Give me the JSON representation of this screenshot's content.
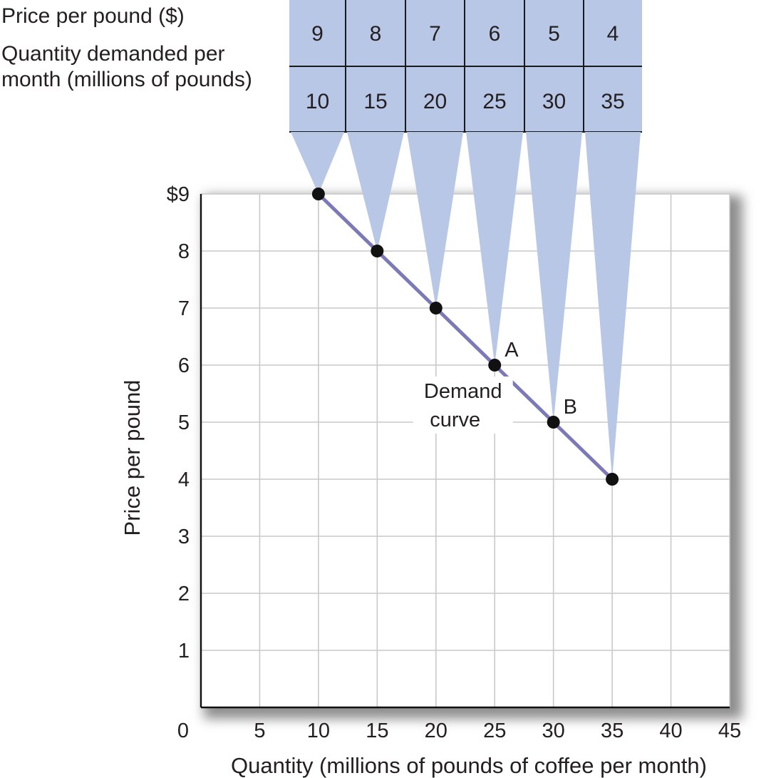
{
  "table": {
    "price_label": "Price per pound ($)",
    "quantity_label_line1": "Quantity demanded per",
    "quantity_label_line2": "month (millions of pounds)",
    "prices": [
      "9",
      "8",
      "7",
      "6",
      "5",
      "4"
    ],
    "quantities": [
      "10",
      "15",
      "20",
      "25",
      "30",
      "35"
    ]
  },
  "chart_data": {
    "type": "line",
    "series": [
      {
        "name": "Demand curve",
        "x": [
          10,
          15,
          20,
          25,
          30,
          35
        ],
        "y": [
          9,
          8,
          7,
          6,
          5,
          4
        ]
      }
    ],
    "xlabel": "Quantity (millions of pounds of coffee per month)",
    "ylabel": "Price per pound",
    "xlim": [
      0,
      45
    ],
    "ylim": [
      0,
      9
    ],
    "x_ticks": [
      "0",
      "5",
      "10",
      "15",
      "20",
      "25",
      "30",
      "35",
      "40",
      "45"
    ],
    "y_ticks": [
      "",
      "1",
      "2",
      "3",
      "4",
      "5",
      "6",
      "7",
      "8",
      "$9"
    ],
    "grid": true,
    "annotations": [
      {
        "text": "A",
        "x": 25,
        "y": 6
      },
      {
        "text": "B",
        "x": 30,
        "y": 5
      }
    ],
    "curve_label_line1": "Demand",
    "curve_label_line2": "curve",
    "colors": {
      "line": "#7b79b8",
      "table_fill": "#b8c7e6",
      "marker": "#111111",
      "grid": "#c9c9c9"
    }
  }
}
